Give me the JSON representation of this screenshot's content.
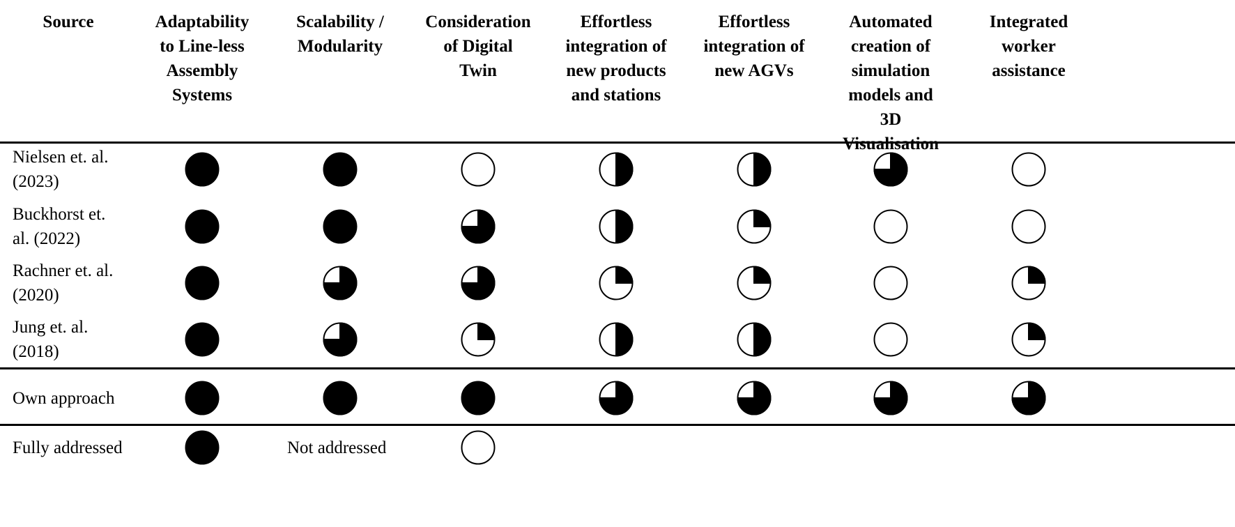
{
  "table": {
    "headers": [
      "Source",
      "Adaptability to Line-less Assembly Systems",
      "Scalability / Modularity",
      "Consideration of Digital Twin",
      "Effortless integration of new products and stations",
      "Effortless integration of new AGVs",
      "Automated creation of simulation models and 3D Visualisation",
      "Integrated worker assistance"
    ],
    "header_lines": [
      [
        "Source"
      ],
      [
        "Adaptability",
        "to Line-less",
        "Assembly",
        "Systems"
      ],
      [
        "Scalability /",
        "Modularity"
      ],
      [
        "Consideration",
        "of Digital",
        "Twin"
      ],
      [
        "Effortless",
        "integration of",
        "new products",
        "and stations"
      ],
      [
        "Effortless",
        "integration of",
        "new AGVs"
      ],
      [
        "Automated",
        "creation of",
        "simulation",
        "models and",
        "3D",
        "Visualisation"
      ],
      [
        "Integrated",
        "worker",
        "assistance"
      ]
    ],
    "rows": [
      {
        "source_lines": [
          "Nielsen et. al.",
          "(2023)"
        ],
        "ratings": [
          1,
          1,
          0,
          0.5,
          0.5,
          0.75,
          0
        ]
      },
      {
        "source_lines": [
          "Buckhorst et.",
          "al. (2022)"
        ],
        "ratings": [
          1,
          1,
          0.75,
          0.5,
          0.25,
          0,
          0
        ]
      },
      {
        "source_lines": [
          "Rachner et. al.",
          "(2020)"
        ],
        "ratings": [
          1,
          0.75,
          0.75,
          0.25,
          0.25,
          0,
          0.25
        ]
      },
      {
        "source_lines": [
          "Jung et. al.",
          "(2018)"
        ],
        "ratings": [
          1,
          0.75,
          0.25,
          0.5,
          0.5,
          0,
          0.25
        ]
      },
      {
        "source_lines": [
          "Own approach"
        ],
        "ratings": [
          1,
          1,
          1,
          0.75,
          0.75,
          0.75,
          0.75
        ]
      }
    ]
  },
  "legend": {
    "fully_label": "Fully addressed",
    "fully_value": 1,
    "not_label": "Not addressed",
    "not_value": 0
  }
}
